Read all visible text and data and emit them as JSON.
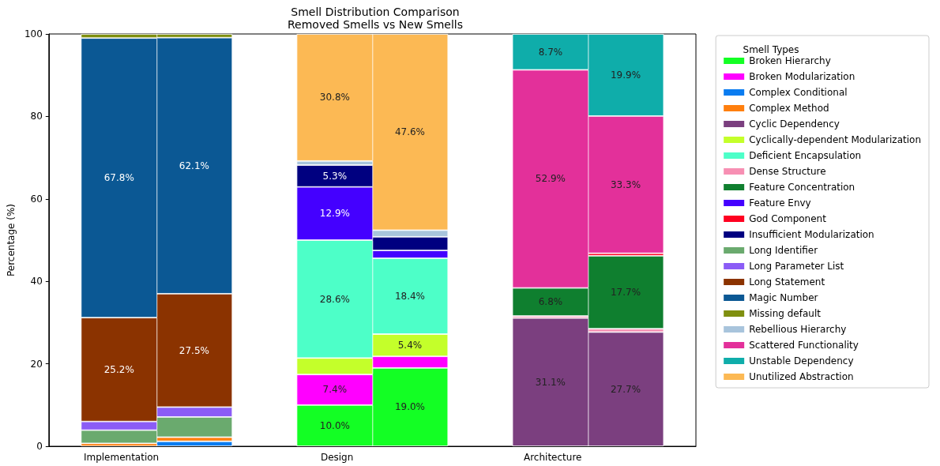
{
  "chart_data": {
    "type": "bar",
    "title": "Smell Distribution Comparison",
    "subtitle": "Removed Smells vs New Smells",
    "ylabel": "Percentage (%)",
    "legend_title": "Smell Types",
    "categories": [
      "Implementation",
      null,
      "Design",
      null,
      "Architecture",
      null
    ],
    "stacked": true,
    "ylim": [
      0,
      100
    ],
    "yticks": [
      0,
      20,
      40,
      60,
      80,
      100
    ],
    "grid": false,
    "legend": "right",
    "series": [
      {
        "name": "Broken Hierarchy",
        "color": "#13ff24",
        "values": [
          null,
          null,
          10.0,
          19.0,
          null,
          null
        ],
        "value_labels": [
          null,
          null,
          "10.0%",
          "19.0%",
          null,
          null
        ]
      },
      {
        "name": "Broken Modularization",
        "color": "#ff00ff",
        "values": [
          null,
          null,
          7.4,
          2.8,
          null,
          null
        ],
        "value_labels": [
          null,
          null,
          "7.4%",
          null,
          null,
          null
        ]
      },
      {
        "name": "Complex Conditional",
        "color": "#0a7cf0",
        "values": [
          null,
          1.2,
          null,
          null,
          null,
          null
        ]
      },
      {
        "name": "Complex Method",
        "color": "#ff7f0e",
        "values": [
          0.7,
          1.0,
          null,
          null,
          null,
          null
        ]
      },
      {
        "name": "Cyclic Dependency",
        "color": "#7b3f7f",
        "values": [
          null,
          null,
          null,
          null,
          31.1,
          27.7
        ],
        "value_labels": [
          null,
          null,
          null,
          null,
          "31.1%",
          "27.7%"
        ]
      },
      {
        "name": "Cyclically-dependent Modularization",
        "color": "#c4ff2a",
        "values": [
          null,
          null,
          4.0,
          5.4,
          null,
          null
        ],
        "value_labels": [
          null,
          null,
          null,
          "5.4%",
          null,
          null
        ]
      },
      {
        "name": "Deficient Encapsulation",
        "color": "#4dffc8",
        "values": [
          null,
          null,
          28.6,
          18.4,
          null,
          null
        ],
        "value_labels": [
          null,
          null,
          "28.6%",
          "18.4%",
          null,
          null
        ]
      },
      {
        "name": "Dense Structure",
        "color": "#f78fb3",
        "values": [
          null,
          null,
          null,
          null,
          0.5,
          0.8
        ]
      },
      {
        "name": "Feature Concentration",
        "color": "#0f7f2f",
        "values": [
          null,
          null,
          null,
          null,
          6.8,
          17.7
        ],
        "value_labels": [
          null,
          null,
          null,
          null,
          "6.8%",
          "17.7%"
        ]
      },
      {
        "name": "Feature Envy",
        "color": "#4400ff",
        "values": [
          null,
          null,
          12.9,
          1.9,
          null,
          null
        ],
        "value_labels": [
          null,
          null,
          "12.9%",
          null,
          null,
          null
        ]
      },
      {
        "name": "God Component",
        "color": "#ff0020",
        "values": [
          null,
          null,
          null,
          null,
          null,
          0.6
        ]
      },
      {
        "name": "Insufficient Modularization",
        "color": "#000080",
        "values": [
          null,
          null,
          5.3,
          3.3,
          null,
          null
        ],
        "value_labels": [
          null,
          null,
          "5.3%",
          null,
          null,
          null
        ]
      },
      {
        "name": "Long Identifier",
        "color": "#6aaa6e",
        "values": [
          3.2,
          4.9,
          null,
          null,
          null,
          null
        ]
      },
      {
        "name": "Long Parameter List",
        "color": "#8b5cf6",
        "values": [
          2.1,
          2.4,
          null,
          null,
          null,
          null
        ]
      },
      {
        "name": "Long Statement",
        "color": "#8b3300",
        "values": [
          25.2,
          27.5,
          null,
          null,
          null,
          null
        ],
        "value_labels": [
          "25.2%",
          "27.5%",
          null,
          null,
          null,
          null
        ]
      },
      {
        "name": "Magic Number",
        "color": "#0b5894",
        "values": [
          67.8,
          62.1,
          null,
          null,
          null,
          null
        ],
        "value_labels": [
          "67.8%",
          "62.1%",
          null,
          null,
          null,
          null
        ]
      },
      {
        "name": "Missing default",
        "color": "#7f8f0f",
        "values": [
          1.0,
          0.9,
          null,
          null,
          null,
          null
        ]
      },
      {
        "name": "Rebellious Hierarchy",
        "color": "#a8c4dc",
        "values": [
          null,
          null,
          1.0,
          1.6,
          null,
          null
        ]
      },
      {
        "name": "Scattered Functionality",
        "color": "#e3309a",
        "values": [
          null,
          null,
          null,
          null,
          52.9,
          33.3
        ],
        "value_labels": [
          null,
          null,
          null,
          null,
          "52.9%",
          "33.3%"
        ]
      },
      {
        "name": "Unstable Dependency",
        "color": "#0fadaa",
        "values": [
          null,
          null,
          null,
          null,
          8.7,
          19.9
        ],
        "value_labels": [
          null,
          null,
          null,
          null,
          "8.7%",
          "19.9%"
        ]
      },
      {
        "name": "Unutilized Abstraction",
        "color": "#fcb954",
        "values": [
          null,
          null,
          30.8,
          47.6,
          null,
          null
        ],
        "value_labels": [
          null,
          null,
          "30.8%",
          "47.6%",
          null,
          null
        ]
      }
    ]
  }
}
